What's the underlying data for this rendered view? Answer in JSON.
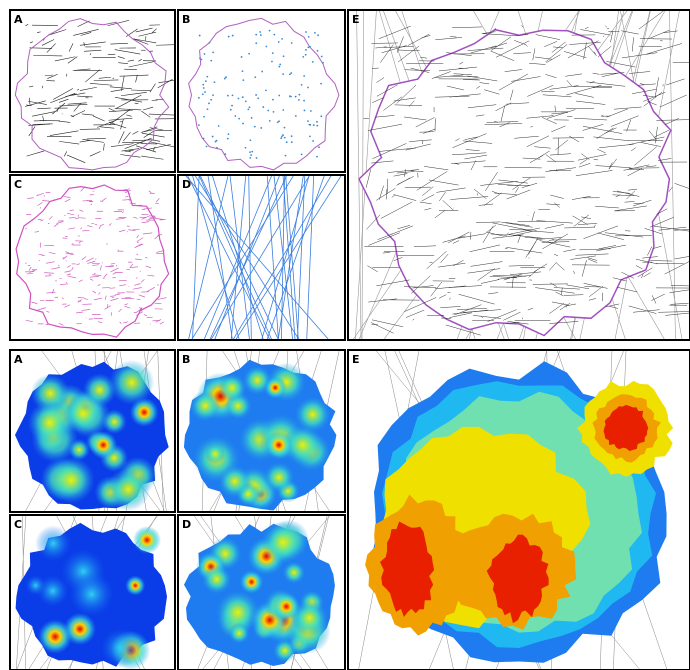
{
  "top": {
    "panels": [
      {
        "label": "A"
      },
      {
        "label": "B"
      },
      {
        "label": "C"
      },
      {
        "label": "D"
      },
      {
        "label": "E"
      }
    ]
  },
  "bottom": {
    "panels": [
      {
        "label": "A"
      },
      {
        "label": "B"
      },
      {
        "label": "C"
      },
      {
        "label": "D"
      },
      {
        "label": "E"
      }
    ]
  }
}
